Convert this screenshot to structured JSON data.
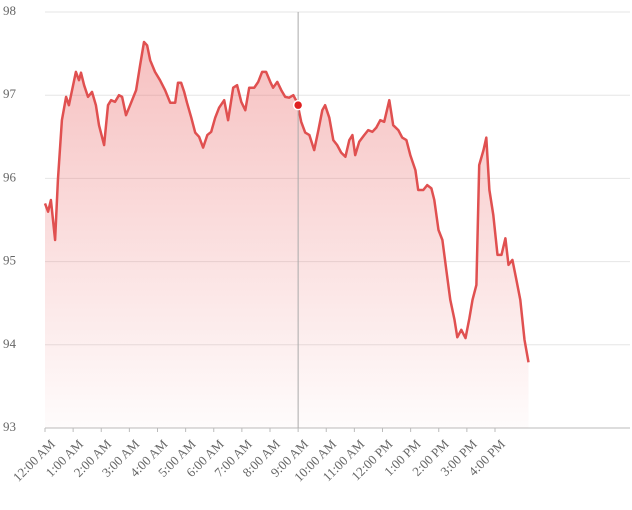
{
  "chart_data": {
    "type": "area",
    "x": [
      0,
      0.11,
      0.21,
      0.36,
      0.46,
      0.6,
      0.75,
      0.85,
      1.0,
      1.1,
      1.21,
      1.28,
      1.39,
      1.53,
      1.67,
      1.81,
      1.92,
      2.1,
      2.24,
      2.35,
      2.49,
      2.63,
      2.74,
      2.88,
      3.06,
      3.24,
      3.38,
      3.52,
      3.63,
      3.74,
      3.91,
      4.09,
      4.27,
      4.45,
      4.63,
      4.73,
      4.84,
      4.95,
      5.05,
      5.2,
      5.34,
      5.48,
      5.62,
      5.77,
      5.91,
      6.05,
      6.19,
      6.37,
      6.51,
      6.69,
      6.83,
      6.98,
      7.12,
      7.26,
      7.44,
      7.58,
      7.72,
      7.86,
      8.01,
      8.11,
      8.26,
      8.4,
      8.54,
      8.68,
      8.83,
      8.97,
      9.11,
      9.25,
      9.4,
      9.57,
      9.72,
      9.86,
      9.96,
      10.11,
      10.25,
      10.39,
      10.53,
      10.68,
      10.82,
      10.93,
      11.03,
      11.17,
      11.35,
      11.49,
      11.64,
      11.78,
      11.92,
      12.06,
      12.24,
      12.38,
      12.56,
      12.7,
      12.85,
      12.99,
      13.17,
      13.27,
      13.45,
      13.59,
      13.74,
      13.84,
      13.99,
      14.13,
      14.27,
      14.41,
      14.56,
      14.66,
      14.8,
      14.95,
      15.09,
      15.2,
      15.34,
      15.44,
      15.59,
      15.69,
      15.8,
      15.94,
      16.09,
      16.23,
      16.37,
      16.48,
      16.62,
      16.76,
      16.9,
      17.05,
      17.19
    ],
    "series": [
      {
        "color": "#e05050",
        "values": [
          95.7,
          95.6,
          95.74,
          95.26,
          95.98,
          96.7,
          96.98,
          96.88,
          97.12,
          97.28,
          97.18,
          97.27,
          97.12,
          96.98,
          97.04,
          96.88,
          96.64,
          96.4,
          96.88,
          96.94,
          96.92,
          97.0,
          96.98,
          96.76,
          96.91,
          97.06,
          97.36,
          97.64,
          97.6,
          97.42,
          97.28,
          97.18,
          97.06,
          96.91,
          96.91,
          97.15,
          97.15,
          97.04,
          96.91,
          96.73,
          96.55,
          96.5,
          96.37,
          96.52,
          96.56,
          96.73,
          96.85,
          96.94,
          96.7,
          97.09,
          97.12,
          96.92,
          96.82,
          97.09,
          97.09,
          97.16,
          97.28,
          97.28,
          97.16,
          97.09,
          97.16,
          97.06,
          96.98,
          96.97,
          97.0,
          96.91,
          96.68,
          96.55,
          96.52,
          96.34,
          96.58,
          96.82,
          96.88,
          96.73,
          96.46,
          96.4,
          96.31,
          96.26,
          96.46,
          96.52,
          96.28,
          96.44,
          96.52,
          96.58,
          96.56,
          96.61,
          96.7,
          96.68,
          96.94,
          96.64,
          96.58,
          96.49,
          96.46,
          96.28,
          96.1,
          95.86,
          95.86,
          95.92,
          95.88,
          95.74,
          95.38,
          95.26,
          94.9,
          94.54,
          94.3,
          94.09,
          94.18,
          94.08,
          94.32,
          94.54,
          94.72,
          96.16,
          96.34,
          96.49,
          95.86,
          95.56,
          95.08,
          95.08,
          95.28,
          94.96,
          95.02,
          94.78,
          94.54,
          94.06,
          93.79
        ]
      }
    ],
    "xlim": [
      0,
      20.8
    ],
    "xticks": [
      {
        "value": 0,
        "label": "12:00 AM"
      },
      {
        "value": 1,
        "label": "1:00 AM"
      },
      {
        "value": 2,
        "label": "2:00 AM"
      },
      {
        "value": 3,
        "label": "3:00 AM"
      },
      {
        "value": 4,
        "label": "4:00 AM"
      },
      {
        "value": 5,
        "label": "5:00 AM"
      },
      {
        "value": 6,
        "label": "6:00 AM"
      },
      {
        "value": 7,
        "label": "7:00 AM"
      },
      {
        "value": 8,
        "label": "8:00 AM"
      },
      {
        "value": 9,
        "label": "9:00 AM"
      },
      {
        "value": 10,
        "label": "10:00 AM"
      },
      {
        "value": 11,
        "label": "11:00 AM"
      },
      {
        "value": 12,
        "label": "12:00 PM"
      },
      {
        "value": 13,
        "label": "1:00 PM"
      },
      {
        "value": 14,
        "label": "2:00 PM"
      },
      {
        "value": 15,
        "label": "3:00 PM"
      },
      {
        "value": 16,
        "label": "4:00 PM"
      }
    ],
    "ylim": [
      93,
      98
    ],
    "yticks": [
      93,
      94,
      95,
      96,
      97,
      98
    ],
    "grid": true,
    "crosshair": {
      "x": 9.0,
      "y": 96.88
    }
  }
}
